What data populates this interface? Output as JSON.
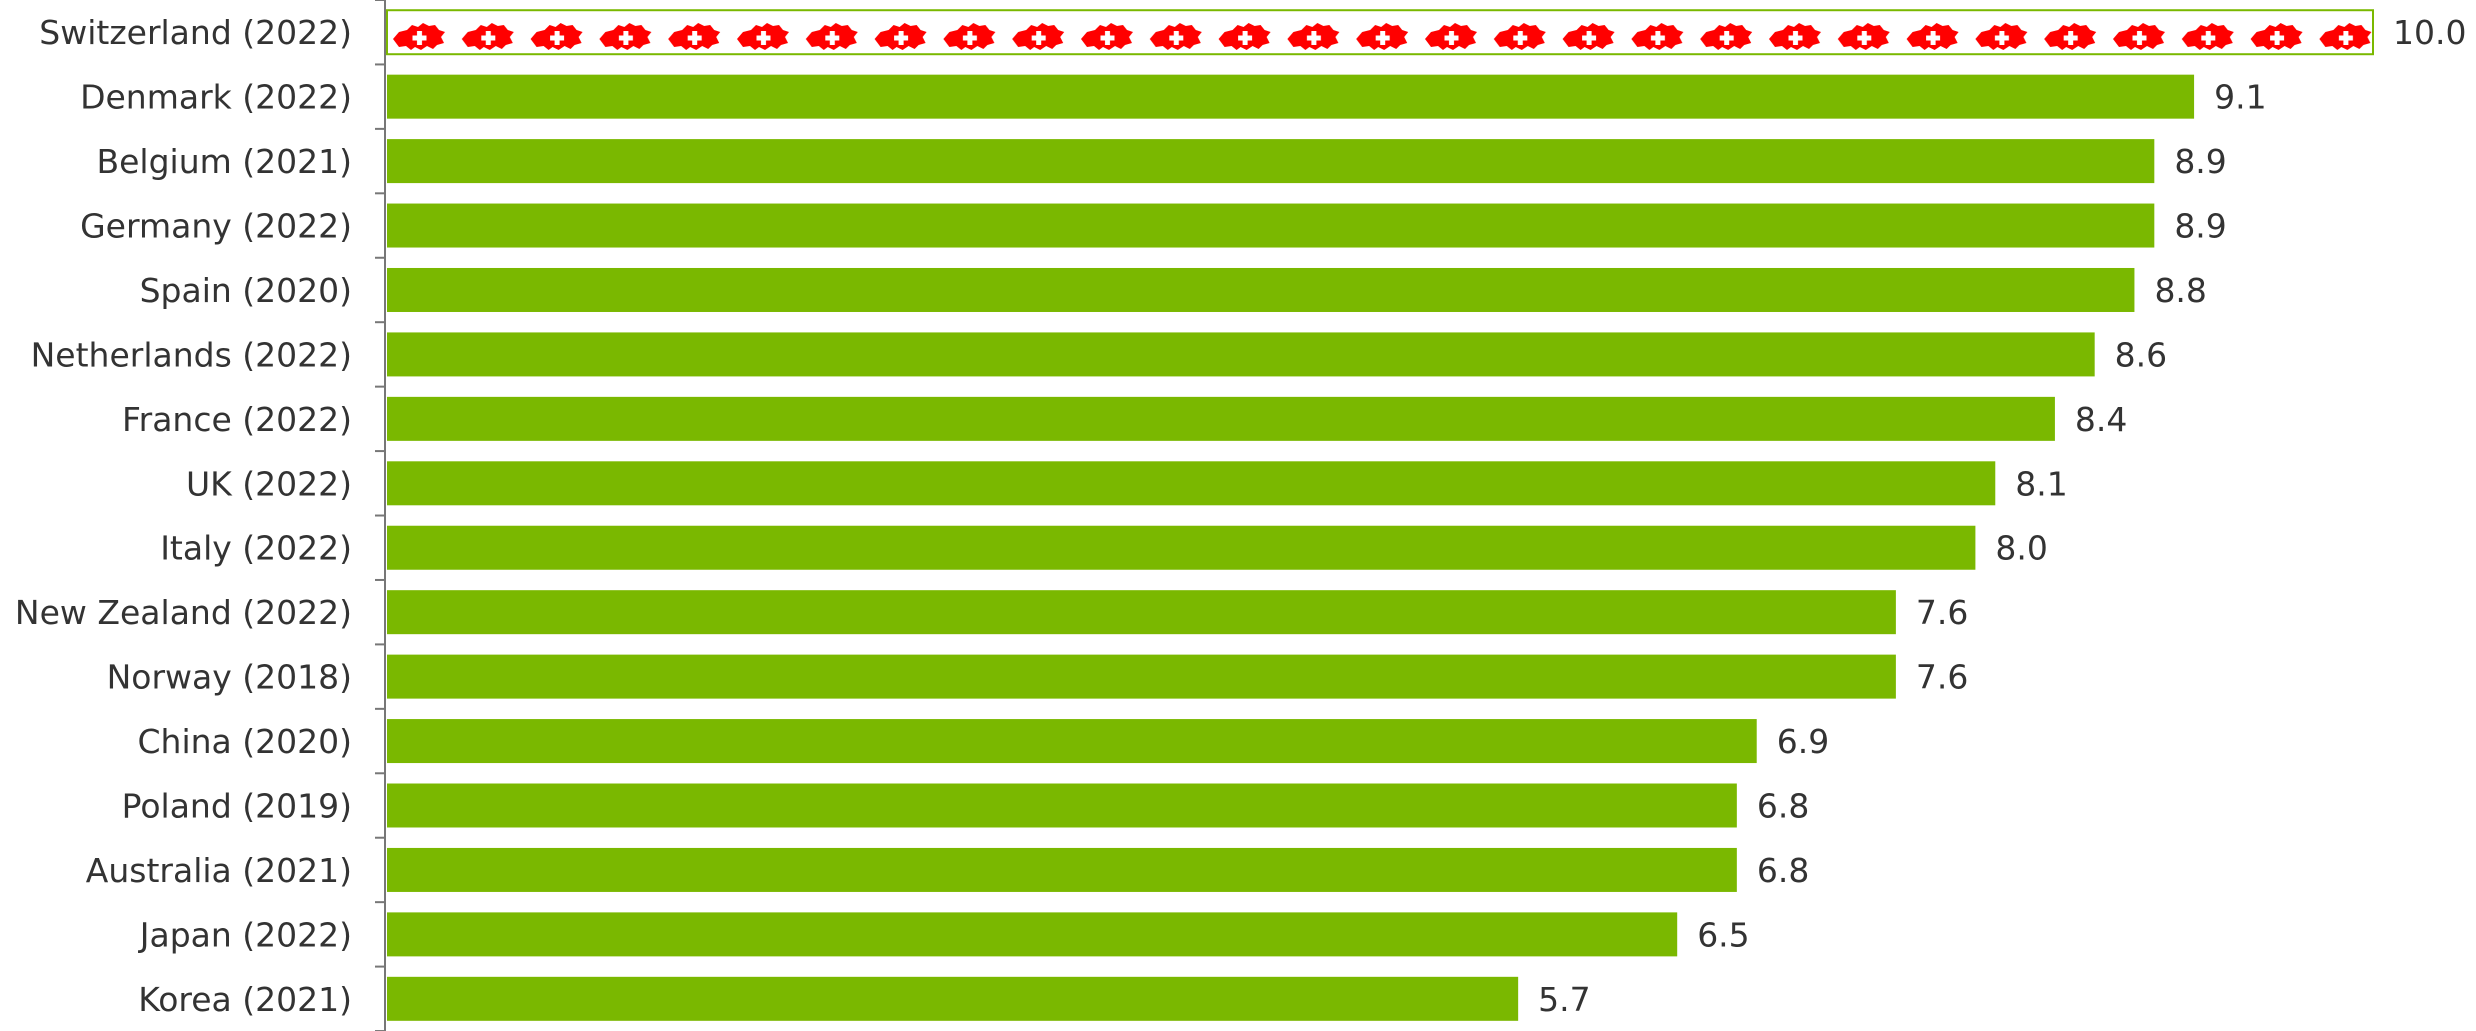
{
  "chart_data": {
    "type": "bar",
    "orientation": "horizontal",
    "title": "",
    "xlabel": "",
    "ylabel": "",
    "xlim": [
      0,
      10
    ],
    "grid": false,
    "legend": "none",
    "categories": [
      "Switzerland (2022)",
      "Denmark (2022)",
      "Belgium (2021)",
      "Germany (2022)",
      "Spain (2020)",
      "Netherlands (2022)",
      "France (2022)",
      "UK (2022)",
      "Italy (2022)",
      "New Zealand (2022)",
      "Norway (2018)",
      "China (2020)",
      "Poland (2019)",
      "Australia (2021)",
      "Japan (2022)",
      "Korea (2021)"
    ],
    "values": [
      10.0,
      9.1,
      8.9,
      8.9,
      8.8,
      8.6,
      8.4,
      8.1,
      8.0,
      7.6,
      7.6,
      6.9,
      6.8,
      6.8,
      6.5,
      5.7
    ],
    "value_labels": [
      "10.0",
      "9.1",
      "8.9",
      "8.9",
      "8.8",
      "8.6",
      "8.4",
      "8.1",
      "8.0",
      "7.6",
      "7.6",
      "6.9",
      "6.8",
      "6.8",
      "6.5",
      "5.7"
    ],
    "highlight_index": 0,
    "highlight_pattern": "swiss-flag-icon",
    "colors": {
      "bar": "#7ab800",
      "highlight_pattern": "#ff0000",
      "highlight_border": "#7ab800",
      "axis": "#777777",
      "text": "#333333"
    }
  }
}
